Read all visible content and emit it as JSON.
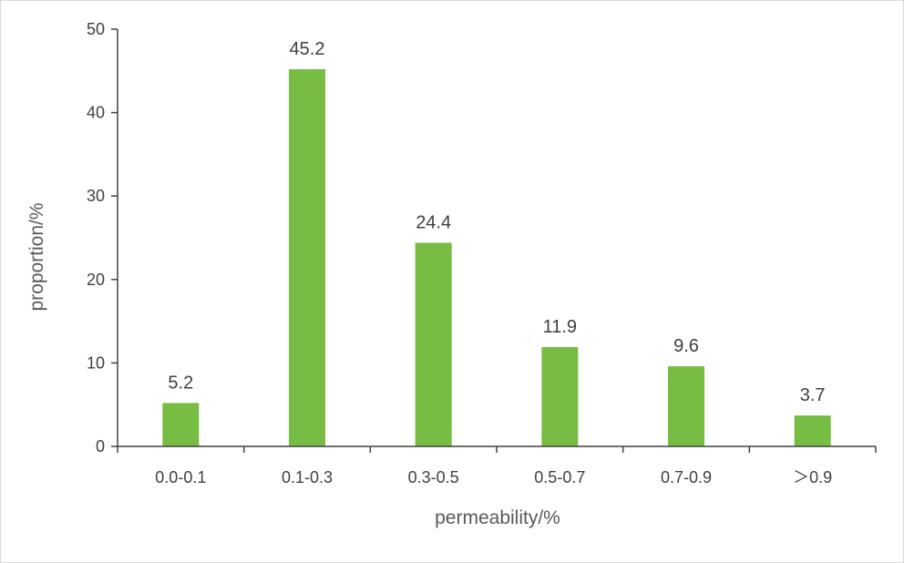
{
  "chart_data": {
    "type": "bar",
    "categories": [
      "0.0-0.1",
      "0.1-0.3",
      "0.3-0.5",
      "0.5-0.7",
      "0.7-0.9",
      "＞0.9"
    ],
    "values": [
      5.2,
      45.2,
      24.4,
      11.9,
      9.6,
      3.7
    ],
    "data_labels": [
      "5.2",
      "45.2",
      "24.4",
      "11.9",
      "9.6",
      "3.7"
    ],
    "xlabel": "permeability/%",
    "ylabel": "proportion/%",
    "ylim": [
      0,
      50
    ],
    "yticks": [
      "0",
      "10",
      "20",
      "30",
      "40",
      "50"
    ],
    "grid": false,
    "bar_color": "#77bc43"
  }
}
